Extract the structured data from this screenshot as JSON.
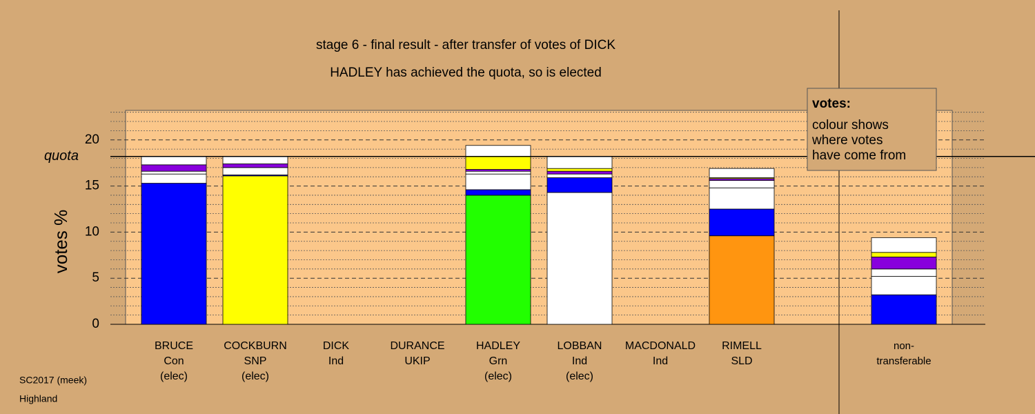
{
  "chart_data": {
    "type": "stacked_bar",
    "title_lines": [
      "stage 6 - final result - after transfer of votes of DICK",
      "HADLEY has achieved the quota, so is elected"
    ],
    "y_label": "votes %",
    "quota": {
      "value": 18.2,
      "label": "quota"
    },
    "ylim": [
      0,
      23.2
    ],
    "yticks": [
      0,
      5,
      10,
      15,
      20
    ],
    "minor_yticks": [
      1,
      2,
      3,
      4,
      6,
      7,
      8,
      9,
      11,
      12,
      13,
      14,
      16,
      17,
      18,
      19,
      21,
      22,
      23
    ],
    "categories": [
      [
        "BRUCE",
        "Con",
        "(elec)"
      ],
      [
        "COCKBURN",
        "SNP",
        "(elec)"
      ],
      [
        "DICK",
        "Ind"
      ],
      [
        "DURANCE",
        "UKIP"
      ],
      [
        "HADLEY",
        "Grn",
        "(elec)"
      ],
      [
        "LOBBAN",
        "Ind",
        "(elec)"
      ],
      [
        "MACDONALD",
        "Ind"
      ],
      [
        "RIMELL",
        "SLD"
      ],
      [
        "non-",
        "transferable"
      ]
    ],
    "stacks": [
      [
        {
          "color": "#0000ff",
          "value": 15.3
        },
        {
          "color": "#ffffff",
          "value": 1.0
        },
        {
          "color": "#ffffff",
          "value": 0.3
        },
        {
          "color": "#8800dd",
          "value": 0.7
        },
        {
          "color": "#ffffff",
          "value": 0.9
        }
      ],
      [
        {
          "color": "#ffff00",
          "value": 16.1
        },
        {
          "color": "#0000ff",
          "value": 0.1
        },
        {
          "color": "#ffffff",
          "value": 0.8
        },
        {
          "color": "#8800dd",
          "value": 0.4
        },
        {
          "color": "#ffffff",
          "value": 0.8
        }
      ],
      [],
      [],
      [
        {
          "color": "#22ff00",
          "value": 14.0
        },
        {
          "color": "#0000ff",
          "value": 0.6
        },
        {
          "color": "#ffffff",
          "value": 1.7
        },
        {
          "color": "#ffffff",
          "value": 0.3
        },
        {
          "color": "#8800dd",
          "value": 0.2
        },
        {
          "color": "#ffff00",
          "value": 1.4
        },
        {
          "color": "#ffffff",
          "value": 1.2
        }
      ],
      [
        {
          "color": "#ffffff",
          "value": 14.3
        },
        {
          "color": "#0000ff",
          "value": 1.6
        },
        {
          "color": "#ffffff",
          "value": 0.4
        },
        {
          "color": "#8800dd",
          "value": 0.3
        },
        {
          "color": "#ffff00",
          "value": 0.3
        },
        {
          "color": "#ffffff",
          "value": 1.3
        }
      ],
      [],
      [
        {
          "color": "#ff9510",
          "value": 9.6
        },
        {
          "color": "#0000ff",
          "value": 2.9
        },
        {
          "color": "#ffffff",
          "value": 2.3
        },
        {
          "color": "#ffffff",
          "value": 0.8
        },
        {
          "color": "#8800dd",
          "value": 0.2
        },
        {
          "color": "#ffff00",
          "value": 0.1
        },
        {
          "color": "#ffffff",
          "value": 1.0
        }
      ],
      [
        {
          "color": "#0000ff",
          "value": 3.2
        },
        {
          "color": "#ffffff",
          "value": 2.0
        },
        {
          "color": "#ffffff",
          "value": 0.8
        },
        {
          "color": "#8800dd",
          "value": 1.3
        },
        {
          "color": "#ffff00",
          "value": 0.5
        },
        {
          "color": "#ffffff",
          "value": 1.6
        }
      ]
    ],
    "legend_box": {
      "title": "votes:",
      "lines": [
        "colour shows",
        "where votes",
        "have come from"
      ]
    },
    "footer": [
      "SC2017 (meek)",
      "Highland"
    ]
  }
}
